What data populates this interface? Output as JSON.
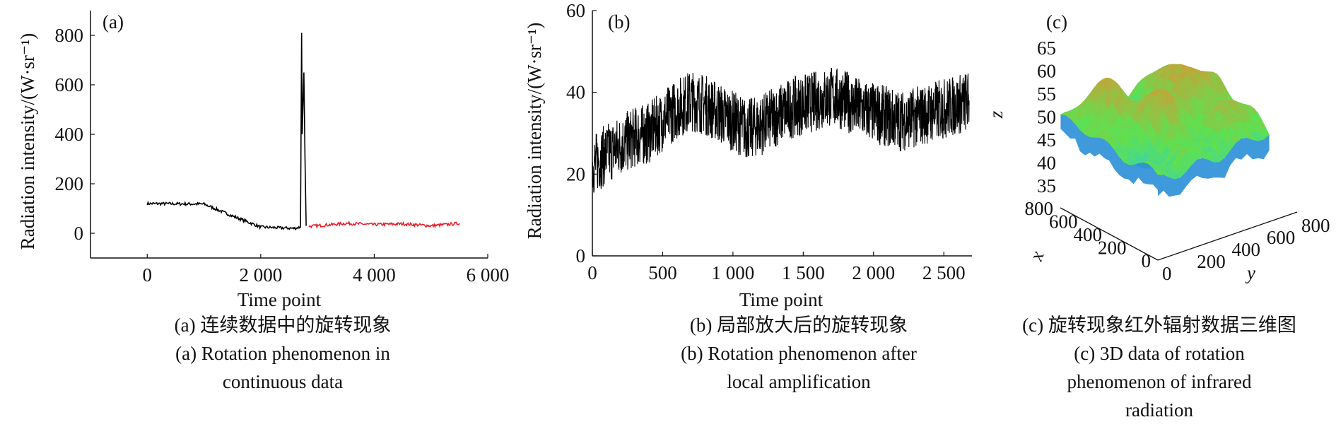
{
  "figure": {
    "captions": {
      "a": {
        "zh": "(a) 连续数据中的旋转现象",
        "en1": "(a) Rotation phenomenon in",
        "en2": "continuous data"
      },
      "b": {
        "zh": "(b) 局部放大后的旋转现象",
        "en1": "(b) Rotation phenomenon after",
        "en2": "local amplification"
      },
      "c": {
        "zh": "(c) 旋转现象红外辐射数据三维图",
        "en1": "(c) 3D data of rotation",
        "en2": "phenomenon of infrared",
        "en3": "radiation"
      }
    }
  },
  "chart_data": [
    {
      "panel": "(a)",
      "type": "line",
      "xlabel": "Time point",
      "ylabel": "Radiation intensity/(W·sr⁻¹)",
      "xlim": [
        -1000,
        6000
      ],
      "ylim": [
        -100,
        900
      ],
      "xticks": [
        "0",
        "2 000",
        "4 000",
        "6 000"
      ],
      "xtick_values": [
        0,
        2000,
        4000,
        6000
      ],
      "yticks": [
        "0",
        "200",
        "400",
        "600",
        "800"
      ],
      "ytick_values": [
        0,
        200,
        400,
        600,
        800
      ],
      "grid": false,
      "series": [
        {
          "color": "#000000",
          "x": [
            0,
            1000,
            1500,
            2000,
            2300,
            2600,
            2700,
            2720,
            2730,
            2760,
            2780,
            2800
          ],
          "y": [
            120,
            118,
            70,
            25,
            22,
            20,
            25,
            810,
            400,
            650,
            300,
            30
          ]
        },
        {
          "color": "#e8202a",
          "x": [
            2850,
            3100,
            3500,
            4000,
            4500,
            5000,
            5500
          ],
          "y": [
            28,
            32,
            40,
            35,
            38,
            30,
            40
          ]
        }
      ]
    },
    {
      "panel": "(b)",
      "type": "line",
      "xlabel": "Time point",
      "ylabel": "Radiation intensity/(W·sr⁻¹)",
      "xlim": [
        0,
        2700
      ],
      "ylim": [
        0,
        60
      ],
      "xticks": [
        "0",
        "500",
        "1 000",
        "1 500",
        "2 000",
        "2 500"
      ],
      "xtick_values": [
        0,
        500,
        1000,
        1500,
        2000,
        2500
      ],
      "yticks": [
        "0",
        "20",
        "40",
        "60"
      ],
      "ytick_values": [
        0,
        20,
        40,
        60
      ],
      "grid": false,
      "series": [
        {
          "color": "#000000",
          "x": [
            0,
            100,
            200,
            300,
            400,
            500,
            600,
            700,
            800,
            900,
            1000,
            1100,
            1200,
            1300,
            1400,
            1500,
            1600,
            1700,
            1800,
            1900,
            2000,
            2100,
            2200,
            2300,
            2400,
            2500,
            2600,
            2680
          ],
          "y": [
            22,
            25,
            27,
            29,
            30,
            33,
            36,
            38,
            37,
            35,
            33,
            31,
            32,
            34,
            36,
            37,
            38,
            39,
            38,
            36,
            35,
            34,
            33,
            34,
            35,
            36,
            37,
            38
          ]
        }
      ]
    },
    {
      "panel": "(c)",
      "type": "heatmap",
      "xlabel": "x",
      "ylabel": "y",
      "zlabel": "z",
      "x_ticks": [
        "800",
        "600",
        "400",
        "200",
        "0"
      ],
      "y_ticks": [
        "0",
        "200",
        "400",
        "600",
        "800"
      ],
      "z_ticks": [
        "35",
        "40",
        "45",
        "50",
        "55",
        "60",
        "65"
      ],
      "zlim": [
        35,
        65
      ],
      "colormap": [
        "#1a3cf0",
        "#2fd0c8",
        "#5fe050",
        "#f28a2e"
      ]
    }
  ]
}
